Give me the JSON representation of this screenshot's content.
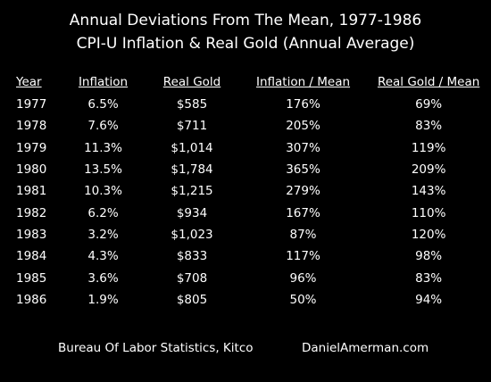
{
  "chart_data": {
    "type": "table",
    "title": "Annual Deviations From The Mean, 1977-1986",
    "subtitle": "CPI-U Inflation & Real Gold (Annual Average)",
    "columns": [
      "Year",
      "Inflation",
      "Real Gold",
      "Inflation / Mean",
      "Real Gold / Mean"
    ],
    "rows": [
      [
        "1977",
        "6.5%",
        "$585",
        "176%",
        "69%"
      ],
      [
        "1978",
        "7.6%",
        "$711",
        "205%",
        "83%"
      ],
      [
        "1979",
        "11.3%",
        "$1,014",
        "307%",
        "119%"
      ],
      [
        "1980",
        "13.5%",
        "$1,784",
        "365%",
        "209%"
      ],
      [
        "1981",
        "10.3%",
        "$1,215",
        "279%",
        "143%"
      ],
      [
        "1982",
        "6.2%",
        "$934",
        "167%",
        "110%"
      ],
      [
        "1983",
        "3.2%",
        "$1,023",
        "87%",
        "120%"
      ],
      [
        "1984",
        "4.3%",
        "$833",
        "117%",
        "98%"
      ],
      [
        "1985",
        "3.6%",
        "$708",
        "96%",
        "83%"
      ],
      [
        "1986",
        "1.9%",
        "$805",
        "50%",
        "94%"
      ]
    ]
  },
  "footer": {
    "source": "Bureau Of Labor Statistics, Kitco",
    "site": "DanielAmerman.com"
  },
  "colors": {
    "background": "#000000",
    "text": "#ffffff"
  }
}
